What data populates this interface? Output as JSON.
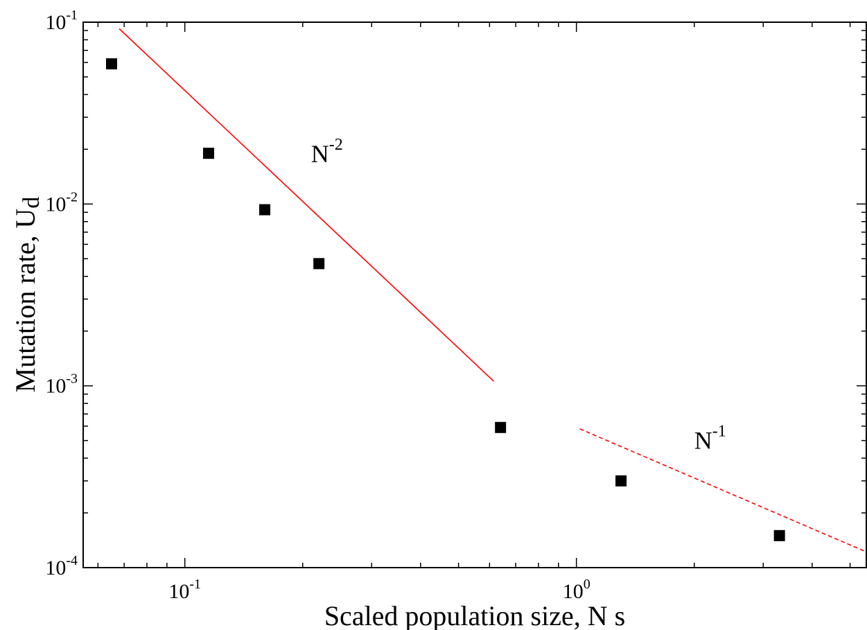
{
  "chart_data": {
    "type": "scatter",
    "x_scale": "log",
    "y_scale": "log",
    "xlabel": "Scaled population size, N s",
    "ylabel_main": "Mutation rate, U",
    "ylabel_sub": "d",
    "xlim": [
      0.055,
      5.5
    ],
    "ylim": [
      0.0001,
      0.1
    ],
    "x_ticks": [
      {
        "value": 0.1,
        "base": "10",
        "exp": "-1"
      },
      {
        "value": 1,
        "base": "10",
        "exp": "0"
      }
    ],
    "y_ticks": [
      {
        "value": 0.0001,
        "base": "10",
        "exp": "-4"
      },
      {
        "value": 0.001,
        "base": "10",
        "exp": "-3"
      },
      {
        "value": 0.01,
        "base": "10",
        "exp": "-2"
      },
      {
        "value": 0.1,
        "base": "10",
        "exp": "-1"
      }
    ],
    "points": [
      {
        "x": 0.065,
        "y": 0.059
      },
      {
        "x": 0.115,
        "y": 0.019
      },
      {
        "x": 0.16,
        "y": 0.0093
      },
      {
        "x": 0.22,
        "y": 0.0047
      },
      {
        "x": 0.64,
        "y": 0.00059
      },
      {
        "x": 1.3,
        "y": 0.0003
      },
      {
        "x": 3.3,
        "y": 0.00015
      }
    ],
    "lines": [
      {
        "style": "solid",
        "color": "#ff0000",
        "x": [
          0.068,
          0.615
        ],
        "y": [
          0.092,
          0.00106
        ]
      },
      {
        "style": "dashed",
        "color": "#ff0000",
        "x": [
          1.02,
          5.5
        ],
        "y": [
          0.00058,
          0.000122
        ]
      }
    ],
    "annotations": [
      {
        "base": "N",
        "exp": "-2",
        "x": 0.21,
        "y": 0.017
      },
      {
        "base": "N",
        "exp": "-1",
        "x": 2.0,
        "y": 0.00045
      }
    ],
    "marker_color": "#000000"
  }
}
